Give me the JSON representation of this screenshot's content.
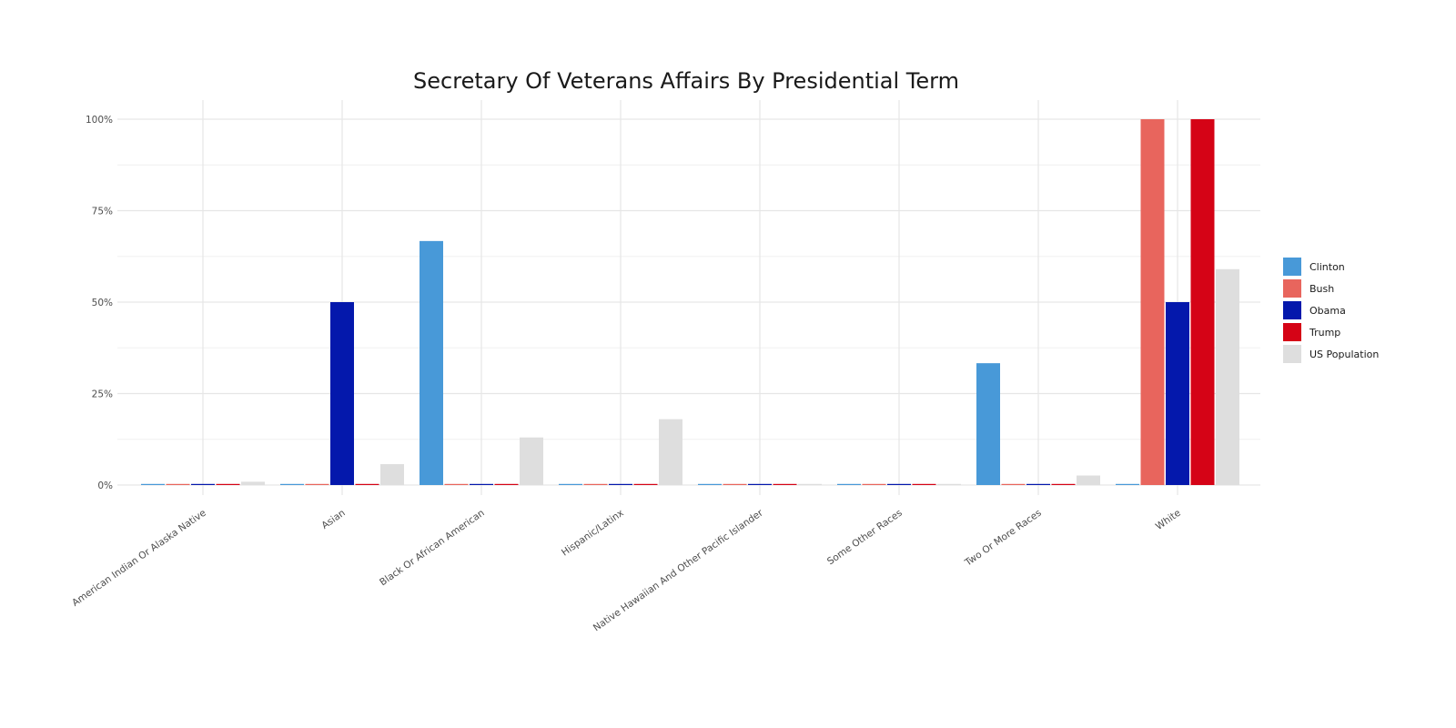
{
  "chart_data": {
    "type": "bar",
    "title": "Secretary Of Veterans Affairs By Presidential Term",
    "xlabel": "",
    "ylabel": "",
    "ylim": [
      0,
      1
    ],
    "y_ticks": [
      0,
      0.25,
      0.5,
      0.75,
      1
    ],
    "y_tick_labels": [
      "0%",
      "25%",
      "50%",
      "75%",
      "100%"
    ],
    "grid": true,
    "legend_position": "right",
    "categories": [
      "American Indian Or Alaska Native",
      "Asian",
      "Black Or African American",
      "Hispanic/Latinx",
      "Native Hawaiian And Other Pacific Islander",
      "Some Other Races",
      "Two Or More Races",
      "White"
    ],
    "series": [
      {
        "name": "Clinton",
        "color": "#4899d8",
        "values": [
          0,
          0,
          0.667,
          0,
          0,
          0,
          0.333,
          0
        ]
      },
      {
        "name": "Bush",
        "color": "#e8655d",
        "values": [
          0,
          0,
          0,
          0,
          0,
          0,
          0,
          1.0
        ]
      },
      {
        "name": "Obama",
        "color": "#0418ac",
        "values": [
          0,
          0.5,
          0,
          0,
          0,
          0,
          0,
          0.5
        ]
      },
      {
        "name": "Trump",
        "color": "#d50316",
        "values": [
          0,
          0,
          0,
          0,
          0,
          0,
          0,
          1.0
        ]
      },
      {
        "name": "US Population",
        "color": "#dedede",
        "values": [
          0.009,
          0.057,
          0.13,
          0.18,
          0.002,
          0.002,
          0.026,
          0.59
        ]
      }
    ]
  }
}
